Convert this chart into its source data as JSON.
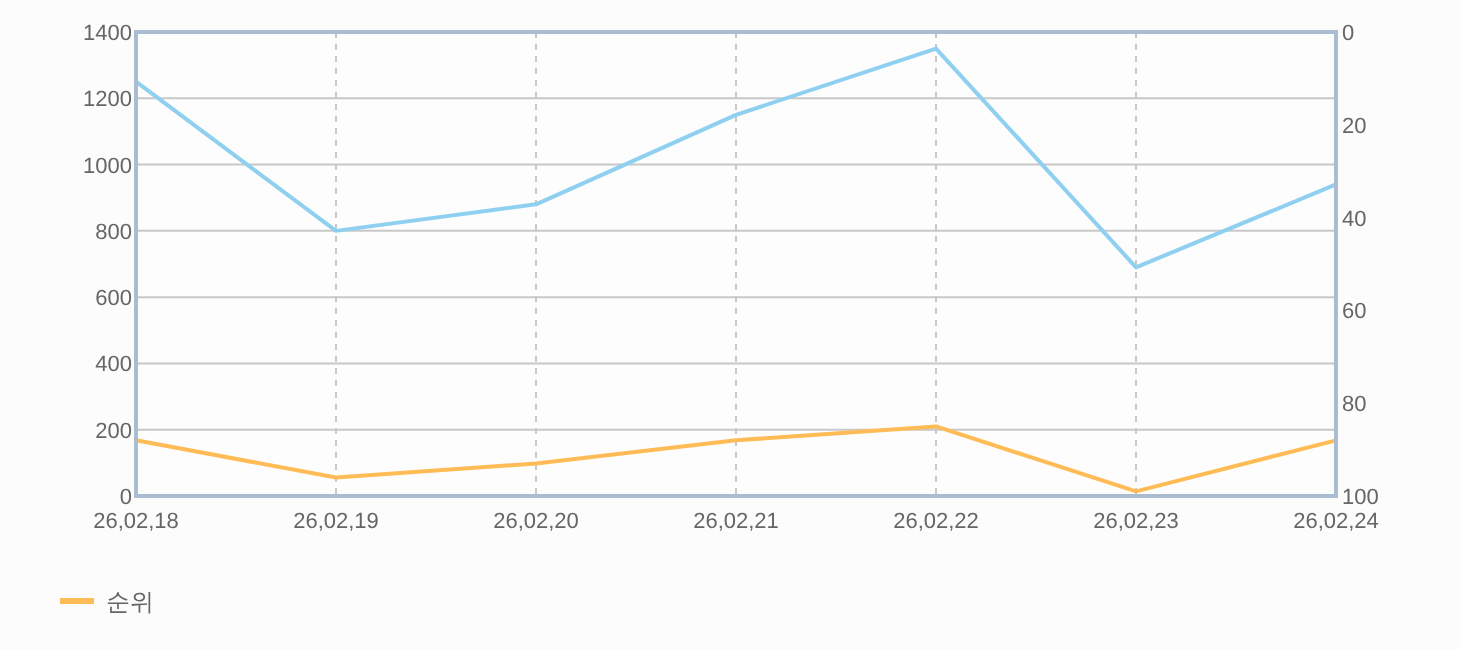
{
  "chart_data": {
    "type": "line",
    "categories": [
      "26,02,18",
      "26,02,19",
      "26,02,20",
      "26,02,21",
      "26,02,22",
      "26,02,23",
      "26,02,24"
    ],
    "series": [
      {
        "color": "#8fd0f0",
        "values": [
          1250,
          800,
          880,
          1150,
          1350,
          690,
          940
        ]
      },
      {
        "name": "순위",
        "color": "#ffbb55",
        "axis": "y2",
        "values": [
          88,
          96,
          93,
          88,
          85,
          99,
          88
        ]
      }
    ],
    "ylim": [
      0,
      1400
    ],
    "yticks": [
      0,
      200,
      400,
      600,
      800,
      1000,
      1200,
      1400
    ],
    "y2lim": [
      100,
      0
    ],
    "y2ticks": [
      0,
      20,
      40,
      60,
      80,
      100
    ],
    "grid": true,
    "legend": "bottom left",
    "marker": "none",
    "line_style": "solid"
  }
}
